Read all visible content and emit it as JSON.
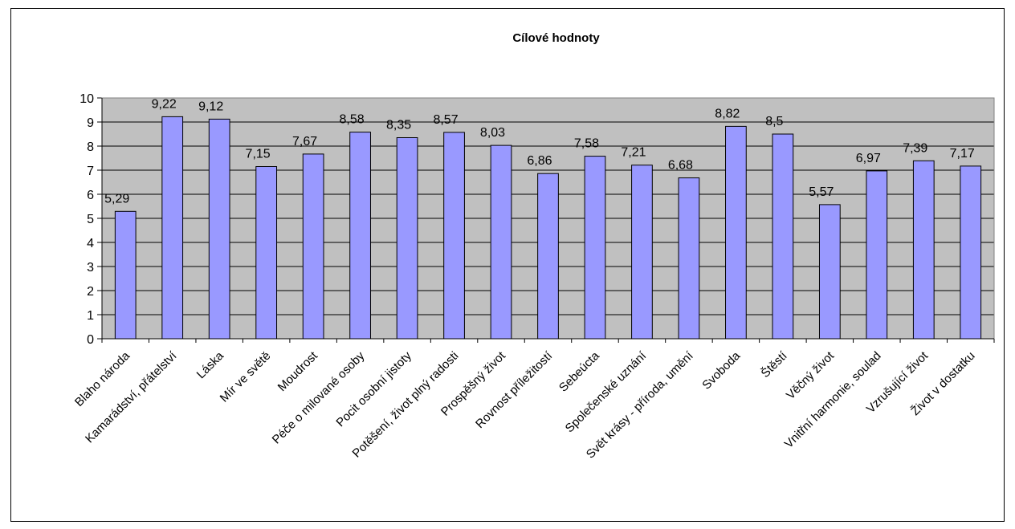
{
  "chart_data": {
    "type": "bar",
    "title": "Cílové hodnoty",
    "xlabel": "",
    "ylabel": "",
    "ylim": [
      0,
      10
    ],
    "yticks": [
      "0",
      "1",
      "2",
      "3",
      "4",
      "5",
      "6",
      "7",
      "8",
      "9",
      "10"
    ],
    "grid": true,
    "legend": "none",
    "categories": [
      "Blaho národa",
      "Kamarádství, přátelství",
      "Láska",
      "Mír ve světě",
      "Moudrost",
      "Péče o milované osoby",
      "Pocit osobní jistoty",
      "Potěšení, život plný radosti",
      "Prospěšný život",
      "Rovnost příležitostí",
      "Sebeúcta",
      "Společenské uznání",
      "Svět krásy - příroda, umění",
      "Svoboda",
      "Štěstí",
      "Věčný život",
      "Vnitřní harmonie, soulad",
      "Vzrušující život",
      "Život v dostatku"
    ],
    "values": [
      5.29,
      9.22,
      9.12,
      7.15,
      7.67,
      8.58,
      8.35,
      8.57,
      8.03,
      6.86,
      7.58,
      7.21,
      6.68,
      8.82,
      8.5,
      5.57,
      6.97,
      7.39,
      7.17
    ],
    "data_labels": [
      "5,29",
      "9,22",
      "9,12",
      "7,15",
      "7,67",
      "8,58",
      "8,35",
      "8,57",
      "8,03",
      "6,86",
      "7,58",
      "7,21",
      "6,68",
      "8,82",
      "8,5",
      "5,57",
      "6,97",
      "7,39",
      "7,17"
    ],
    "colors": {
      "bar_fill": "#9999ff",
      "bar_stroke": "#000000",
      "plot_bg": "#c0c0c0",
      "gridline": "#000000"
    }
  }
}
